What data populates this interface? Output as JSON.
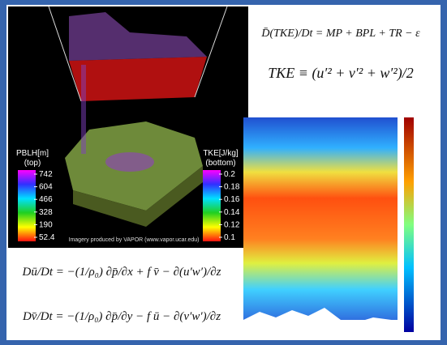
{
  "left_panel": {
    "pblh_legend": {
      "title": "PBLH[m]",
      "subtitle": "(top)",
      "labels": [
        742,
        604,
        466,
        328,
        190,
        52.4
      ]
    },
    "tke_legend": {
      "title": "TKE[J/kg]",
      "subtitle": "(bottom)",
      "labels": [
        0.2,
        0.18,
        0.16,
        0.14,
        0.12,
        0.1
      ]
    },
    "credit": "Imagery produced by VAPOR (www.vapor.ucar.edu)"
  },
  "equations": {
    "tke_budget": "D̄(TKE)/Dt = MP + BPL + TR − ε",
    "tke_definition": "TKE ≡ (u′² + v′² + w′²)/2",
    "u_momentum": "Dū/Dt = −(1/ρ₀) ∂p̄/∂x + f v̄ − ∂(u′w′)/∂z",
    "v_momentum": "Dv̄/Dt = −(1/ρ₀) ∂p̄/∂y − f ū − ∂(v′w′)/∂z"
  }
}
